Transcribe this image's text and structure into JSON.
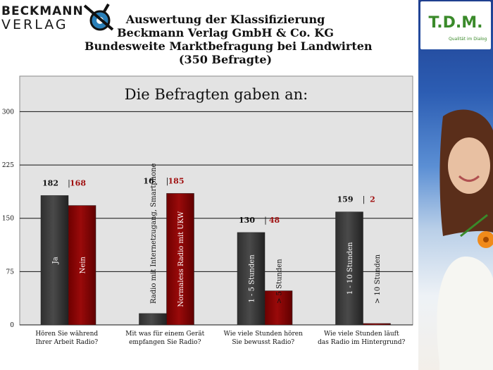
{
  "logo": {
    "line1": "BECKMANN",
    "line2": "VERLAG"
  },
  "header": {
    "lines": [
      "Auswertung der Klassifizierung",
      "Beckmann Verlag GmbH & Co. KG",
      "Bundesweite Marktbefragung bei Landwirten",
      "(350 Befragte)"
    ]
  },
  "sidebar": {
    "logo_text": "T.D.M.",
    "tagline": "Qualität im Dialog"
  },
  "colors": {
    "series_a": "#4a4a4a",
    "series_b": "#9a0a0a",
    "label_b": "#a01010",
    "plot_bg": "#e3e3e3",
    "panel_blue": "#2c5db3"
  },
  "chart_data": {
    "type": "bar",
    "title": "Die Befragten gaben an:",
    "ylim": [
      0,
      350
    ],
    "yticks": [
      0,
      75,
      150,
      225,
      300
    ],
    "grid": true,
    "categories": [
      "Hören Sie während Ihrer Arbeit Radio?",
      "Mit was für einem Gerät empfangen Sie Radio?",
      "Wie viele Stunden hören Sie bewusst Radio?",
      "Wie viele Stunden läuft das Radio im Hintergrund?"
    ],
    "category_lines": [
      [
        "Hören Sie während",
        "Ihrer Arbeit Radio?"
      ],
      [
        "Mit was für einem Gerät",
        "empfangen Sie Radio?"
      ],
      [
        "Wie viele Stunden hören",
        "Sie bewusst Radio?"
      ],
      [
        "Wie viele Stunden läuft",
        "das Radio im Hintergrund?"
      ]
    ],
    "pairs": [
      {
        "a": {
          "value": 182,
          "label": "Ja"
        },
        "b": {
          "value": 168,
          "label": "Nein"
        }
      },
      {
        "a": {
          "value": 16,
          "label": "Radio mit Internetzugang, Smartphone"
        },
        "b": {
          "value": 185,
          "label": "Normaless Radio mit UKW"
        }
      },
      {
        "a": {
          "value": 130,
          "label": "1 - 5 Stunden"
        },
        "b": {
          "value": 48,
          "label": "> 5  Stunden"
        }
      },
      {
        "a": {
          "value": 159,
          "label": "1 - 10  Stunden"
        },
        "b": {
          "value": 2,
          "label": "> 10  Stunden"
        }
      }
    ]
  }
}
